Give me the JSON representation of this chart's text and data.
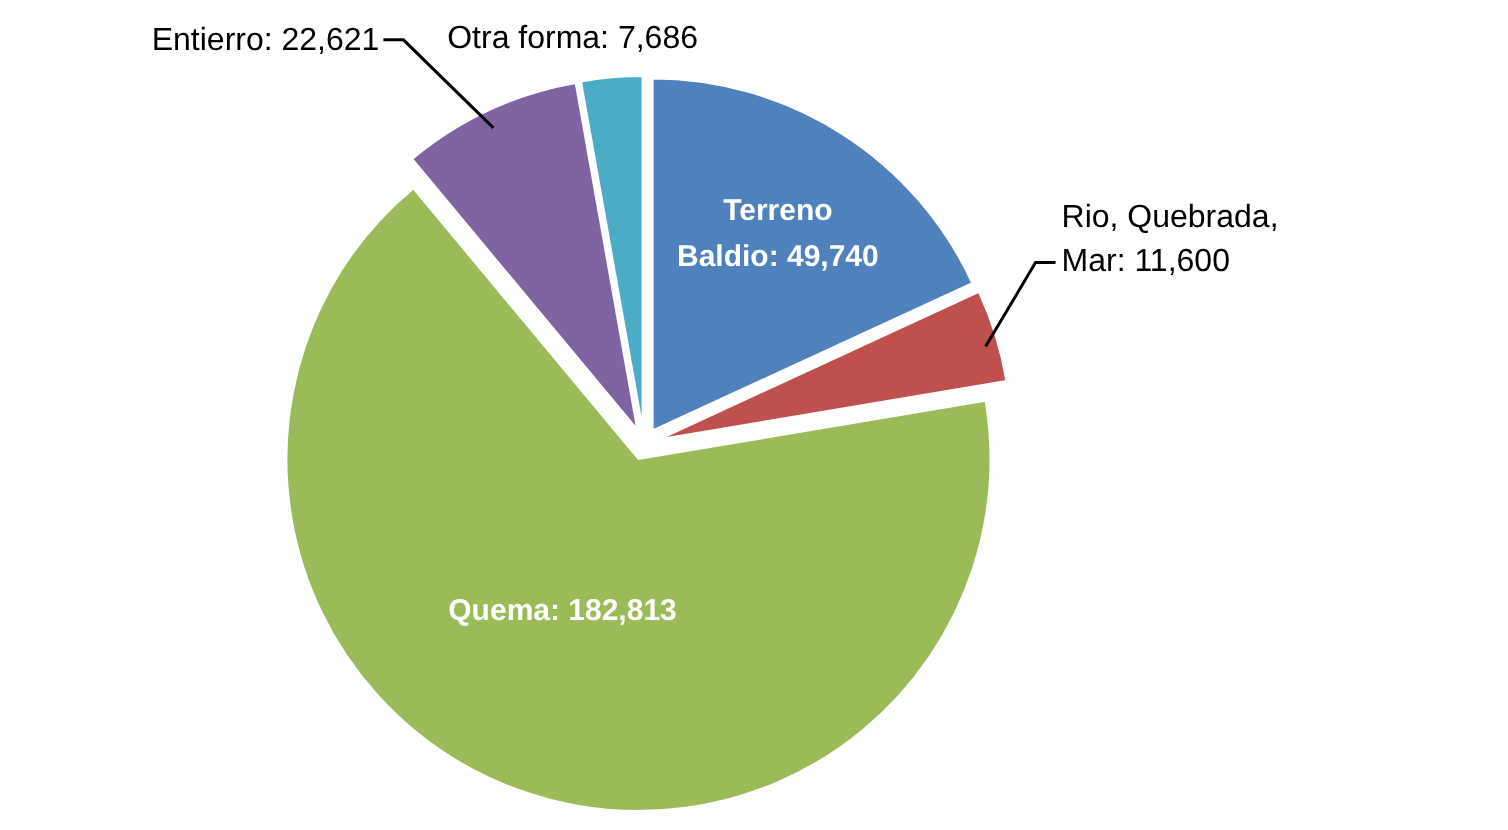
{
  "chart_data": {
    "type": "pie",
    "categories": [
      "Terreno Baldio",
      "Rio, Quebrada, Mar",
      "Quema",
      "Entierro",
      "Otra forma"
    ],
    "values": [
      49740,
      11600,
      182813,
      22621,
      7686
    ],
    "value_labels": [
      "49,740",
      "11,600",
      "182,813",
      "22,621",
      "7,686"
    ],
    "colors": [
      "#4f81bd",
      "#c0504d",
      "#9bbb59",
      "#8064a2",
      "#4bacc6"
    ]
  }
}
